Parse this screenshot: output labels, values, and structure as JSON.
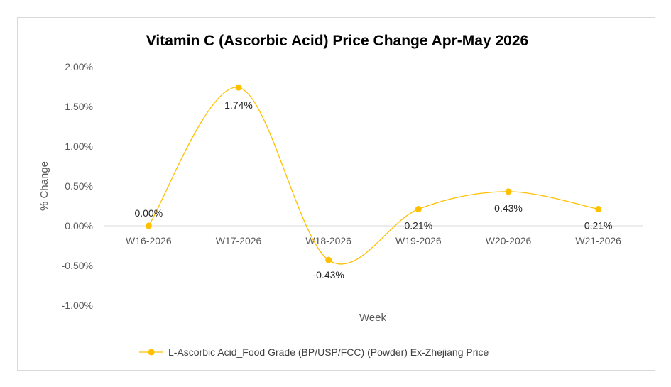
{
  "chart_data": {
    "type": "line",
    "title": "Vitamin C (Ascorbic Acid) Price Change Apr-May 2026",
    "xlabel": "Week",
    "ylabel": "% Change",
    "categories": [
      "W16-2026",
      "W17-2026",
      "W18-2026",
      "W19-2026",
      "W20-2026",
      "W21-2026"
    ],
    "series": [
      {
        "name": "L-Ascorbic Acid_Food Grade (BP/USP/FCC) (Powder) Ex-Zhejiang Price",
        "values": [
          0.0,
          1.74,
          -0.43,
          0.21,
          0.43,
          0.21
        ],
        "labels": [
          "0.00%",
          "1.74%",
          "-0.43%",
          "0.21%",
          "0.43%",
          "0.21%"
        ],
        "color": "#FFC000"
      }
    ],
    "ylim": [
      -1.0,
      2.0
    ],
    "yticks": [
      2.0,
      1.5,
      1.0,
      0.5,
      0.0,
      -0.5,
      -1.0
    ],
    "ytick_labels": [
      "2.00%",
      "1.50%",
      "1.00%",
      "0.50%",
      "0.00%",
      "-0.50%",
      "-1.00%"
    ],
    "smooth": true,
    "grid": false,
    "legend_position": "bottom",
    "colors": {
      "axis_line": "#d9d9d9",
      "border": "#d9d9d9"
    }
  }
}
